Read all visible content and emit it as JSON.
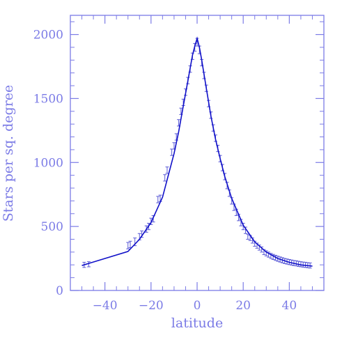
{
  "chart_data": {
    "type": "scatter",
    "xlabel": "latitude",
    "ylabel": "Stars per sq. degree",
    "xlim": [
      -55,
      55
    ],
    "ylim": [
      0,
      2150
    ],
    "x_ticks": [
      -40,
      -20,
      0,
      20,
      40
    ],
    "y_ticks": [
      0,
      500,
      1000,
      1500,
      2000
    ],
    "x_tick_labels": [
      "−40",
      "−20",
      "0",
      "20",
      "40"
    ],
    "y_tick_labels": [
      "0",
      "500",
      "1000",
      "1500",
      "2000"
    ],
    "grid": false,
    "legend": "none",
    "colors": {
      "axis": "#7b7be6",
      "data": "#5a5ad6",
      "model": "#1010c8"
    },
    "series": [
      {
        "kind": "points-with-error-bars",
        "points": [
          {
            "x": -49,
            "y": 200,
            "err": 20
          },
          {
            "x": -47,
            "y": 205,
            "err": 20
          },
          {
            "x": -30,
            "y": 350,
            "err": 25
          },
          {
            "x": -29,
            "y": 360,
            "err": 25
          },
          {
            "x": -27,
            "y": 380,
            "err": 30
          },
          {
            "x": -25,
            "y": 420,
            "err": 25
          },
          {
            "x": -24,
            "y": 440,
            "err": 25
          },
          {
            "x": -22,
            "y": 480,
            "err": 25
          },
          {
            "x": -21,
            "y": 500,
            "err": 25
          },
          {
            "x": -20,
            "y": 540,
            "err": 25
          },
          {
            "x": -19,
            "y": 560,
            "err": 25
          },
          {
            "x": -17,
            "y": 710,
            "err": 25
          },
          {
            "x": -16,
            "y": 720,
            "err": 25
          },
          {
            "x": -14,
            "y": 880,
            "err": 25
          },
          {
            "x": -13,
            "y": 940,
            "err": 25
          },
          {
            "x": -11,
            "y": 1080,
            "err": 25
          },
          {
            "x": -10,
            "y": 1130,
            "err": 25
          },
          {
            "x": -9,
            "y": 1200,
            "err": 25
          },
          {
            "x": -8,
            "y": 1310,
            "err": 25
          },
          {
            "x": -7,
            "y": 1400,
            "err": 25
          },
          {
            "x": -6,
            "y": 1470,
            "err": 25
          },
          {
            "x": -5,
            "y": 1550,
            "err": 25
          },
          {
            "x": -4,
            "y": 1640,
            "err": 25
          },
          {
            "x": -3,
            "y": 1730,
            "err": 25
          },
          {
            "x": -2,
            "y": 1830,
            "err": 25
          },
          {
            "x": -1,
            "y": 1900,
            "err": 30
          },
          {
            "x": 0,
            "y": 1940,
            "err": 30
          },
          {
            "x": 1,
            "y": 1880,
            "err": 30
          },
          {
            "x": 2,
            "y": 1780,
            "err": 25
          },
          {
            "x": 3,
            "y": 1680,
            "err": 25
          },
          {
            "x": 4,
            "y": 1580,
            "err": 25
          },
          {
            "x": 5,
            "y": 1460,
            "err": 25
          },
          {
            "x": 6,
            "y": 1370,
            "err": 25
          },
          {
            "x": 7,
            "y": 1270,
            "err": 25
          },
          {
            "x": 8,
            "y": 1190,
            "err": 25
          },
          {
            "x": 9,
            "y": 1110,
            "err": 25
          },
          {
            "x": 10,
            "y": 1030,
            "err": 25
          },
          {
            "x": 11,
            "y": 960,
            "err": 25
          },
          {
            "x": 12,
            "y": 890,
            "err": 25
          },
          {
            "x": 13,
            "y": 820,
            "err": 25
          },
          {
            "x": 14,
            "y": 760,
            "err": 25
          },
          {
            "x": 15,
            "y": 700,
            "err": 25
          },
          {
            "x": 16,
            "y": 650,
            "err": 25
          },
          {
            "x": 17,
            "y": 610,
            "err": 25
          },
          {
            "x": 18,
            "y": 570,
            "err": 25
          },
          {
            "x": 19,
            "y": 530,
            "err": 25
          },
          {
            "x": 20,
            "y": 500,
            "err": 25
          },
          {
            "x": 21,
            "y": 470,
            "err": 25
          },
          {
            "x": 22,
            "y": 420,
            "err": 20
          },
          {
            "x": 23,
            "y": 410,
            "err": 20
          },
          {
            "x": 24,
            "y": 390,
            "err": 20
          },
          {
            "x": 25,
            "y": 365,
            "err": 20
          },
          {
            "x": 26,
            "y": 350,
            "err": 20
          },
          {
            "x": 27,
            "y": 335,
            "err": 20
          },
          {
            "x": 28,
            "y": 320,
            "err": 20
          },
          {
            "x": 29,
            "y": 300,
            "err": 20
          },
          {
            "x": 30,
            "y": 290,
            "err": 20
          },
          {
            "x": 31,
            "y": 280,
            "err": 20
          },
          {
            "x": 32,
            "y": 270,
            "err": 20
          },
          {
            "x": 33,
            "y": 262,
            "err": 20
          },
          {
            "x": 34,
            "y": 255,
            "err": 20
          },
          {
            "x": 35,
            "y": 248,
            "err": 20
          },
          {
            "x": 36,
            "y": 242,
            "err": 20
          },
          {
            "x": 37,
            "y": 236,
            "err": 20
          },
          {
            "x": 38,
            "y": 230,
            "err": 20
          },
          {
            "x": 39,
            "y": 226,
            "err": 20
          },
          {
            "x": 40,
            "y": 222,
            "err": 20
          },
          {
            "x": 41,
            "y": 218,
            "err": 20
          },
          {
            "x": 42,
            "y": 214,
            "err": 20
          },
          {
            "x": 43,
            "y": 212,
            "err": 20
          },
          {
            "x": 44,
            "y": 208,
            "err": 20
          },
          {
            "x": 45,
            "y": 205,
            "err": 20
          },
          {
            "x": 46,
            "y": 202,
            "err": 20
          },
          {
            "x": 47,
            "y": 200,
            "err": 20
          },
          {
            "x": 48,
            "y": 197,
            "err": 20
          },
          {
            "x": 49,
            "y": 195,
            "err": 20
          }
        ]
      },
      {
        "kind": "model-curve",
        "x": [
          -50,
          -30,
          -25,
          -20,
          -15,
          -10,
          -8,
          -6,
          -4,
          -2,
          -1,
          0,
          1,
          2,
          4,
          6,
          8,
          10,
          12,
          15,
          20,
          25,
          30,
          35,
          40,
          45,
          50
        ],
        "y": [
          195,
          305,
          400,
          530,
          730,
          1070,
          1240,
          1440,
          1640,
          1840,
          1910,
          1970,
          1900,
          1800,
          1580,
          1360,
          1180,
          1030,
          890,
          720,
          510,
          380,
          300,
          250,
          220,
          200,
          190
        ]
      }
    ]
  }
}
